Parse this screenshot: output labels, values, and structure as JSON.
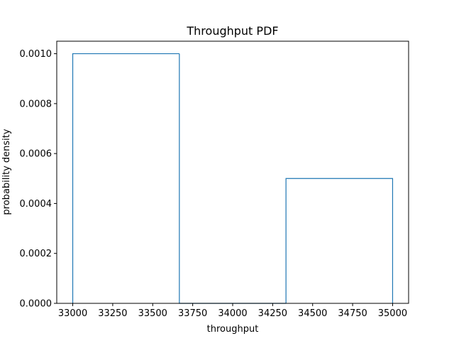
{
  "chart_data": {
    "type": "bar",
    "title": "Throughput PDF",
    "xlabel": "throughput",
    "ylabel": "probability density",
    "histtype": "step",
    "bins": [
      {
        "x0": 33000,
        "x1": 33666.67,
        "density": 0.001
      },
      {
        "x0": 33666.67,
        "x1": 34333.33,
        "density": 0.0
      },
      {
        "x0": 34333.33,
        "x1": 35000,
        "density": 0.0005
      }
    ],
    "xlim": [
      32900,
      35100
    ],
    "ylim": [
      0,
      0.00105
    ],
    "xticks": [
      33000,
      33250,
      33500,
      33750,
      34000,
      34250,
      34500,
      34750,
      35000
    ],
    "xtick_labels": [
      "33000",
      "33250",
      "33500",
      "33750",
      "34000",
      "34250",
      "34500",
      "34750",
      "35000"
    ],
    "yticks": [
      0,
      0.0002,
      0.0004,
      0.0006,
      0.0008,
      0.001
    ],
    "ytick_labels": [
      "0.0000",
      "0.0002",
      "0.0004",
      "0.0006",
      "0.0008",
      "0.0010"
    ],
    "grid": false,
    "colors": {
      "series": "#1f77b4",
      "axes": "#000000"
    }
  }
}
